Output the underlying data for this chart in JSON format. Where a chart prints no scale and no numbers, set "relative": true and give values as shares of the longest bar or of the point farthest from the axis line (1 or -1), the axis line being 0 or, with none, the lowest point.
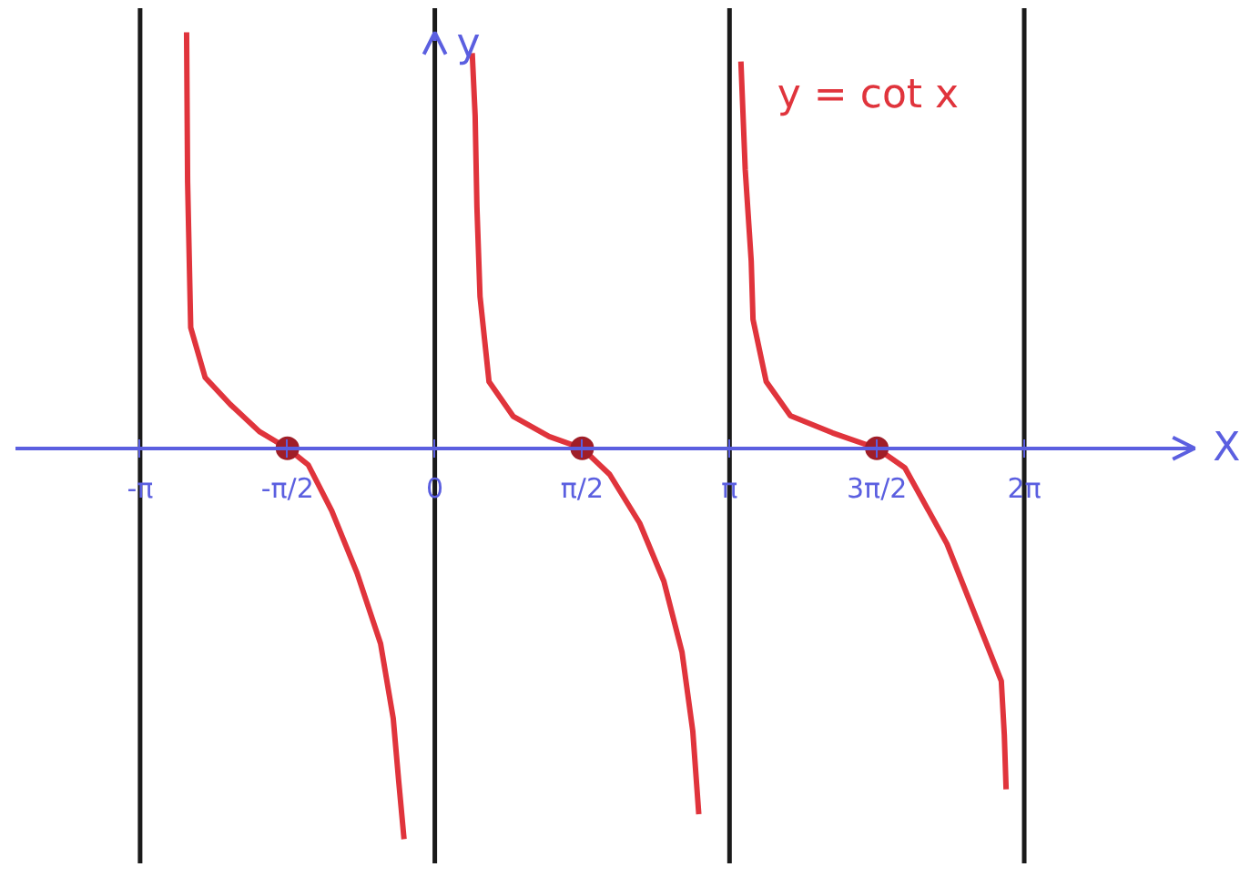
{
  "chart_data": {
    "type": "line",
    "xlabel": "X",
    "ylabel": "y",
    "relative": true,
    "grid": false,
    "xlim": [
      -4.47,
      8.1
    ],
    "xticks": [
      {
        "value": -3.1416,
        "label": "-π"
      },
      {
        "value": -1.5708,
        "label": "-π/2"
      },
      0,
      {
        "value": 1.5708,
        "label": "π/2"
      },
      {
        "value": 3.1416,
        "label": "π"
      },
      {
        "value": 4.7124,
        "label": "3π/2"
      },
      {
        "value": 6.2832,
        "label": "2π"
      }
    ],
    "ref_lines": [
      {
        "axis": "x",
        "value": -3.1416,
        "color": "#1a1a1a"
      },
      {
        "axis": "x",
        "value": 0,
        "color": "#1a1a1a"
      },
      {
        "axis": "x",
        "value": 3.1416,
        "color": "#1a1a1a"
      },
      {
        "axis": "x",
        "value": 6.2832,
        "color": "#1a1a1a"
      }
    ],
    "series": [
      {
        "name": "y = cot x",
        "color": "#e0343c",
        "x": [
          -2.646,
          -2.635,
          -2.602,
          -2.448,
          -2.178,
          -1.87,
          -1.571,
          -1.349,
          -1.099,
          -0.829,
          -0.578,
          -0.443,
          -0.385,
          -0.328,
          null,
          0.399,
          0.43,
          0.449,
          0.482,
          0.578,
          0.835,
          1.22,
          1.571,
          1.864,
          2.184,
          2.442,
          2.635,
          2.75,
          2.814,
          null,
          3.263,
          3.309,
          3.373,
          3.392,
          3.533,
          3.791,
          4.24,
          4.712,
          5.011,
          5.46,
          5.846,
          6.039,
          6.071,
          6.09
        ],
        "values": [
          1.0,
          0.64,
          0.29,
          0.17,
          0.105,
          0.04,
          0,
          -0.04,
          -0.15,
          -0.3,
          -0.47,
          -0.65,
          -0.8,
          -0.94,
          null,
          0.95,
          0.8,
          0.58,
          0.365,
          0.16,
          0.077,
          0.028,
          0,
          -0.063,
          -0.18,
          -0.32,
          -0.49,
          -0.68,
          -0.88,
          null,
          0.93,
          0.67,
          0.45,
          0.31,
          0.16,
          0.078,
          0.037,
          0,
          -0.047,
          -0.23,
          -0.45,
          -0.56,
          -0.69,
          -0.82
        ]
      },
      {
        "type": "scatter",
        "marker": "circle",
        "color": "#a01e28",
        "x": [
          -1.571,
          1.571,
          4.712
        ],
        "values": [
          0,
          0,
          0
        ]
      }
    ]
  }
}
